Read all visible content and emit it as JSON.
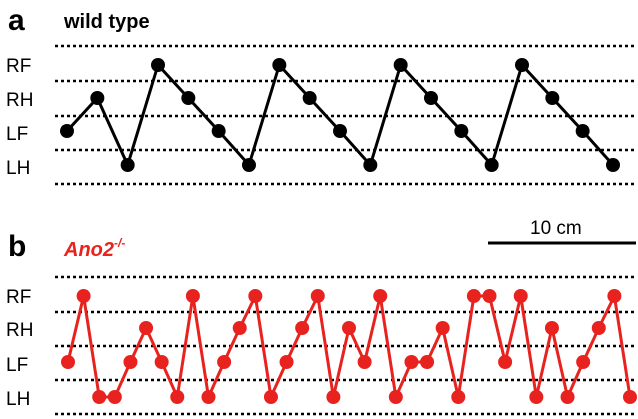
{
  "chart_data": [
    {
      "type": "line",
      "panel": "a",
      "title": "wild type",
      "color": "#000000",
      "categories": [
        "RF",
        "RH",
        "LF",
        "LH"
      ],
      "x": [
        1,
        2,
        3,
        4,
        5,
        6,
        7,
        8,
        9,
        10,
        11,
        12,
        13,
        14,
        15,
        16,
        17,
        18,
        19
      ],
      "values": [
        "LF",
        "RH",
        "LH",
        "RF",
        "RH",
        "LF",
        "LH",
        "RF",
        "RH",
        "LF",
        "LH",
        "RF",
        "RH",
        "LF",
        "LH",
        "RF",
        "RH",
        "LF",
        "LH"
      ],
      "scale_bar": "10 cm",
      "grid": true
    },
    {
      "type": "line",
      "panel": "b",
      "title": "Ano2",
      "title_superscript": "-/-",
      "color": "#e8231f",
      "categories": [
        "RF",
        "RH",
        "LF",
        "LH"
      ],
      "x": [
        1,
        2,
        3,
        4,
        5,
        6,
        7,
        8,
        9,
        10,
        11,
        12,
        13,
        14,
        15,
        16,
        17,
        18,
        19,
        20,
        21,
        22,
        23,
        24,
        25,
        26,
        27,
        28,
        29,
        30,
        31,
        32,
        33,
        34,
        35,
        36,
        37
      ],
      "values": [
        "LF",
        "RF",
        "LH",
        "LH",
        "LF",
        "RH",
        "LF",
        "LH",
        "RF",
        "LH",
        "LF",
        "RH",
        "RF",
        "LH",
        "LF",
        "RH",
        "RF",
        "LH",
        "RH",
        "LF",
        "RF",
        "LH",
        "LF",
        "LF",
        "RH",
        "LH",
        "RF",
        "RF",
        "LF",
        "RF",
        "LH",
        "RH",
        "LH",
        "LF",
        "RH",
        "RF",
        "LH"
      ],
      "grid": true
    }
  ]
}
